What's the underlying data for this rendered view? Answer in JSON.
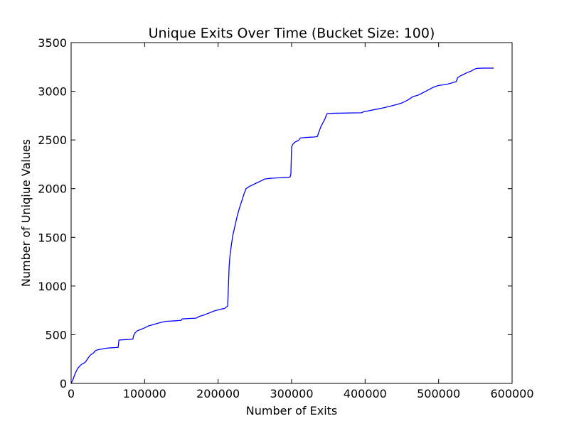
{
  "chart_data": {
    "type": "line",
    "title": "Unique Exits Over Time (Bucket Size: 100)",
    "xlabel": "Number of Exits",
    "ylabel": "Number of Uniqiue Values",
    "xlim": [
      0,
      600000
    ],
    "ylim": [
      0,
      3500
    ],
    "xticks": [
      0,
      100000,
      200000,
      300000,
      400000,
      500000,
      600000
    ],
    "yticks": [
      0,
      500,
      1000,
      1500,
      2000,
      2500,
      3000,
      3500
    ],
    "grid": false,
    "line_color": "#0000ff",
    "series": [
      {
        "x": [
          0,
          2000,
          4000,
          6000,
          9000,
          12000,
          15000,
          18000,
          20000,
          23000,
          26000,
          30000,
          33000,
          36000,
          40000,
          45000,
          50000,
          55000,
          60000,
          64000,
          65000,
          70000,
          75000,
          80000,
          84000,
          85000,
          87000,
          90000,
          95000,
          100000,
          105000,
          110000,
          115000,
          120000,
          125000,
          130000,
          135000,
          140000,
          145000,
          150000,
          151000,
          155000,
          160000,
          165000,
          170000,
          175000,
          180000,
          185000,
          190000,
          195000,
          200000,
          205000,
          208000,
          210000,
          212000,
          213000,
          214000,
          215000,
          216000,
          218000,
          220000,
          223000,
          226000,
          229000,
          232000,
          235000,
          238000,
          241000,
          243000,
          246000,
          250000,
          254000,
          257000,
          260000,
          262000,
          264000,
          266000,
          270000,
          275000,
          280000,
          285000,
          290000,
          295000,
          298000,
          299000,
          300000,
          302000,
          305000,
          308000,
          310000,
          312000,
          318000,
          325000,
          330000,
          335000,
          337000,
          340000,
          345000,
          348000,
          350000,
          355000,
          370000,
          385000,
          395000,
          398000,
          405000,
          415000,
          425000,
          435000,
          440000,
          445000,
          450000,
          458000,
          462000,
          465000,
          472000,
          476000,
          480000,
          490000,
          495000,
          500000,
          510000,
          518000,
          522000,
          524000,
          526000,
          530000,
          533000,
          537000,
          540000,
          545000,
          548000,
          552000,
          560000,
          568000,
          575000
        ],
        "y": [
          0,
          30,
          70,
          110,
          155,
          180,
          200,
          210,
          225,
          260,
          290,
          310,
          335,
          345,
          350,
          358,
          363,
          366,
          368,
          370,
          445,
          448,
          450,
          452,
          455,
          490,
          520,
          540,
          555,
          570,
          590,
          600,
          612,
          622,
          632,
          638,
          640,
          642,
          645,
          648,
          662,
          664,
          666,
          668,
          670,
          690,
          700,
          715,
          730,
          745,
          755,
          765,
          768,
          775,
          790,
          795,
          1000,
          1200,
          1300,
          1420,
          1520,
          1620,
          1720,
          1800,
          1870,
          1940,
          2000,
          2015,
          2025,
          2035,
          2050,
          2065,
          2075,
          2085,
          2095,
          2100,
          2102,
          2105,
          2108,
          2110,
          2112,
          2114,
          2116,
          2120,
          2150,
          2430,
          2460,
          2480,
          2490,
          2500,
          2520,
          2525,
          2528,
          2530,
          2535,
          2580,
          2640,
          2710,
          2770,
          2772,
          2774,
          2776,
          2778,
          2779,
          2790,
          2800,
          2815,
          2830,
          2848,
          2858,
          2868,
          2880,
          2910,
          2930,
          2945,
          2960,
          2975,
          2990,
          3030,
          3048,
          3060,
          3070,
          3085,
          3095,
          3100,
          3140,
          3160,
          3170,
          3185,
          3195,
          3210,
          3225,
          3235,
          3238,
          3238,
          3238
        ]
      }
    ]
  }
}
